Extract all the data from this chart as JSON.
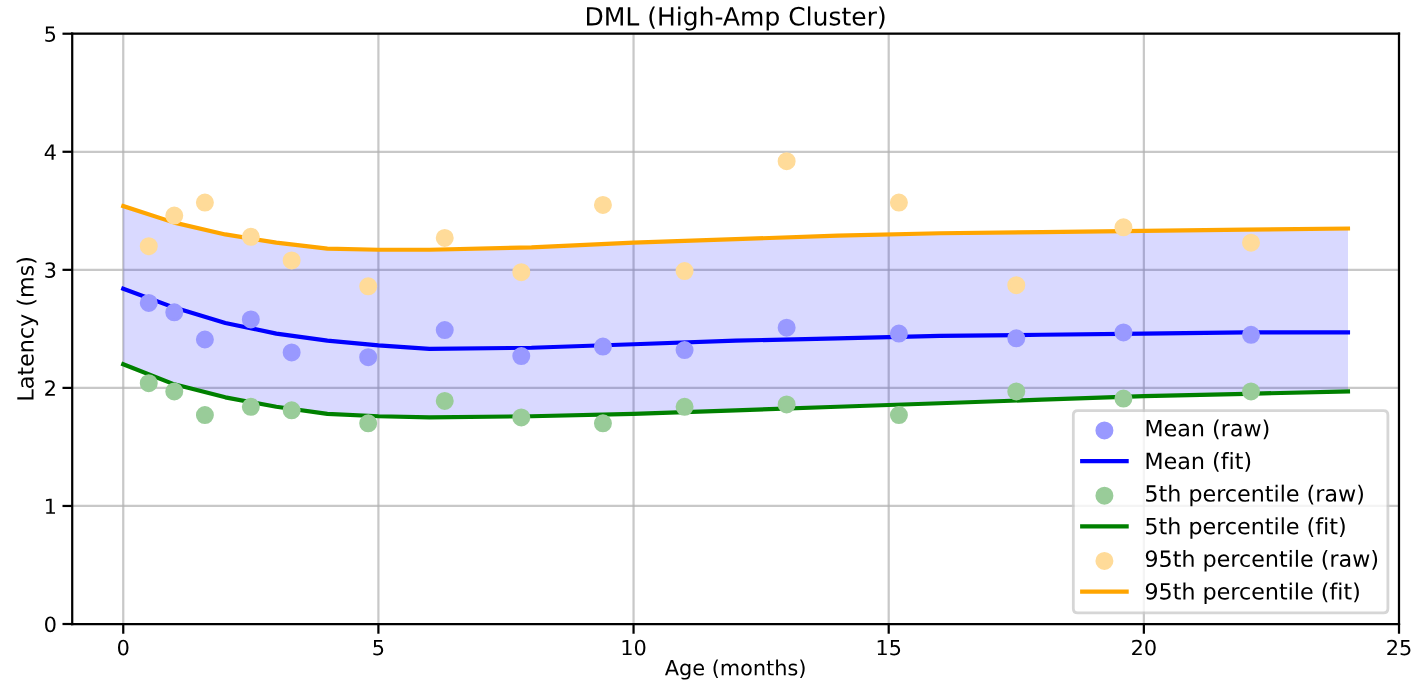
{
  "chart_data": {
    "type": "scatter",
    "title": "DML (High-Amp Cluster)",
    "xlabel": "Age (months)",
    "ylabel": "Latency (ms)",
    "xlim": [
      -1,
      25
    ],
    "xticks": [
      0,
      5,
      10,
      15,
      20,
      25
    ],
    "ylim": [
      0,
      5
    ],
    "yticks": [
      0,
      1,
      2,
      3,
      4,
      5
    ],
    "grid": true,
    "legend": "bottom right",
    "series": [
      {
        "name": "Mean (raw)",
        "marker": "circle",
        "color": "#9999ff",
        "x": [
          0.5,
          1,
          1.6,
          2.5,
          3.3,
          4.8,
          6.3,
          7.8,
          9.4,
          11,
          13,
          15.2,
          17.5,
          19.6,
          22.1
        ],
        "values": [
          2.72,
          2.64,
          2.41,
          2.58,
          2.3,
          2.26,
          2.49,
          2.27,
          2.35,
          2.32,
          2.51,
          2.46,
          2.42,
          2.47,
          2.45
        ]
      },
      {
        "name": "Mean (fit)",
        "type": "line",
        "color": "#0000ff",
        "marker": "none",
        "x": [
          0,
          1,
          2,
          3,
          4,
          5,
          6,
          8,
          10,
          12,
          14,
          16,
          18,
          20,
          22,
          24
        ],
        "values": [
          2.84,
          2.68,
          2.55,
          2.46,
          2.4,
          2.36,
          2.33,
          2.34,
          2.37,
          2.4,
          2.42,
          2.44,
          2.45,
          2.46,
          2.47,
          2.47
        ],
        "lower": [
          2.2,
          2.03,
          1.92,
          1.84,
          1.78,
          1.76,
          1.75,
          1.76,
          1.78,
          1.81,
          1.84,
          1.87,
          1.9,
          1.93,
          1.95,
          1.97
        ],
        "upper": [
          3.54,
          3.4,
          3.3,
          3.23,
          3.18,
          3.17,
          3.17,
          3.19,
          3.23,
          3.26,
          3.29,
          3.31,
          3.32,
          3.33,
          3.34,
          3.35
        ]
      },
      {
        "name": "5th percentile (raw)",
        "marker": "circle",
        "color": "#99cc99",
        "x": [
          0.5,
          1,
          1.6,
          2.5,
          3.3,
          4.8,
          6.3,
          7.8,
          9.4,
          11,
          13,
          15.2,
          17.5,
          19.6,
          22.1
        ],
        "values": [
          2.04,
          1.97,
          1.77,
          1.84,
          1.81,
          1.7,
          1.89,
          1.75,
          1.7,
          1.84,
          1.86,
          1.77,
          1.97,
          1.91,
          1.97
        ]
      },
      {
        "name": "5th percentile (fit)",
        "type": "line",
        "color": "#008000",
        "marker": "none",
        "x": [
          0,
          1,
          2,
          3,
          4,
          5,
          6,
          8,
          10,
          12,
          14,
          16,
          18,
          20,
          22,
          24
        ],
        "values": [
          2.2,
          2.03,
          1.92,
          1.84,
          1.78,
          1.76,
          1.75,
          1.76,
          1.78,
          1.81,
          1.84,
          1.87,
          1.9,
          1.93,
          1.95,
          1.97
        ]
      },
      {
        "name": "95th percentile (raw)",
        "marker": "circle",
        "color": "#ffdb99",
        "x": [
          0.5,
          1,
          1.6,
          2.5,
          3.3,
          4.8,
          6.3,
          7.8,
          9.4,
          11,
          13,
          15.2,
          17.5,
          19.6,
          22.1
        ],
        "values": [
          3.2,
          3.46,
          3.57,
          3.28,
          3.08,
          2.86,
          3.27,
          2.98,
          3.55,
          2.99,
          3.92,
          3.57,
          2.87,
          3.36,
          3.23
        ]
      },
      {
        "name": "95th percentile (fit)",
        "type": "line",
        "color": "#ffa500",
        "marker": "none",
        "x": [
          0,
          1,
          2,
          3,
          4,
          5,
          6,
          8,
          10,
          12,
          14,
          16,
          18,
          20,
          22,
          24
        ],
        "values": [
          3.54,
          3.4,
          3.3,
          3.23,
          3.18,
          3.17,
          3.17,
          3.19,
          3.23,
          3.26,
          3.29,
          3.31,
          3.32,
          3.33,
          3.34,
          3.35
        ]
      }
    ]
  }
}
